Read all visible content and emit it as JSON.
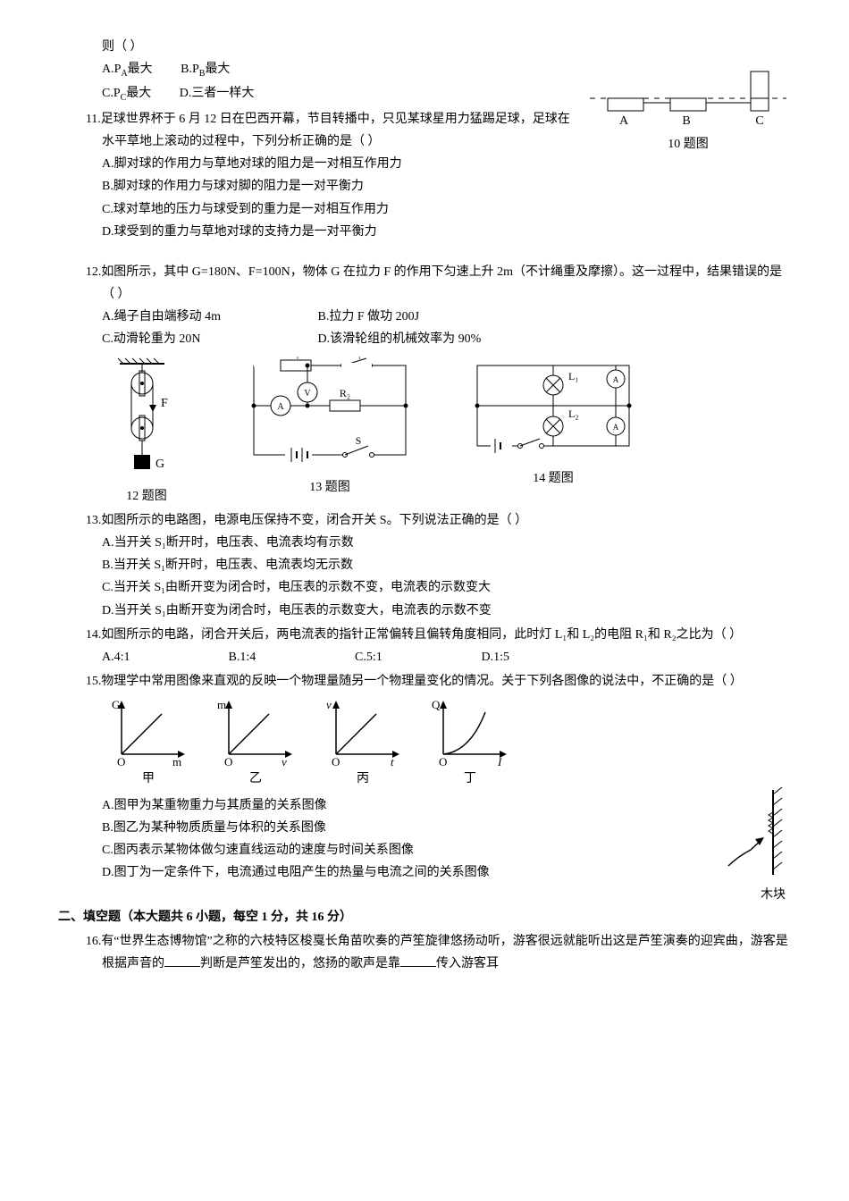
{
  "q10": {
    "pre_indent": "则（    ）",
    "opts": [
      "A.P<sub>A</sub>最大",
      "B.P<sub>B</sub>最大",
      "C.P<sub>C</sub>最大",
      "D.三者一样大"
    ],
    "fig_caption": "10 题图",
    "fig": {
      "labels": [
        "A",
        "B",
        "C"
      ],
      "colors": {
        "line": "#000",
        "dash": "#000"
      }
    }
  },
  "q11": {
    "stem": "11.足球世界杯于 6 月 12 日在巴西开幕，节目转播中，只见某球星用力猛踢足球，足球在水平草地上滚动的过程中，下列分析正确的是（    ）",
    "opts": [
      "A.脚对球的作用力与草地对球的阻力是一对相互作用力",
      "B.脚对球的作用力与球对脚的阻力是一对平衡力",
      "C.球对草地的压力与球受到的重力是一对相互作用力",
      "D.球受到的重力与草地对球的支持力是一对平衡力"
    ]
  },
  "q12": {
    "stem": "12.如图所示，其中 G=180N、F=100N，物体 G 在拉力 F 的作用下匀速上升 2m（不计绳重及摩擦）。这一过程中，结果错误的是（    ）",
    "opts_row1": [
      "A.绳子自由端移动 4m",
      "B.拉力 F 做功 200J"
    ],
    "opts_row2": [
      "C.动滑轮重为 20N",
      "D.该滑轮组的机械效率为 90%"
    ],
    "captions": [
      "12 题图",
      "13 题图",
      "14 题图"
    ],
    "labels": {
      "F": "F",
      "G": "G",
      "R1": "R₁",
      "R2": "R₂",
      "S1": "S₁",
      "S": "S",
      "L1": "L₁",
      "L2": "L₂"
    }
  },
  "q13": {
    "stem": "13.如图所示的电路图，电源电压保持不变，闭合开关 S。下列说法正确的是（    ）",
    "opts": [
      "A.当开关 S₁断开时，电压表、电流表均有示数",
      "B.当开关 S₁断开时，电压表、电流表均无示数",
      "C.当开关 S₁由断开变为闭合时，电压表的示数不变，电流表的示数变大",
      "D.当开关 S₁由断开变为闭合时，电压表的示数变大，电流表的示数不变"
    ]
  },
  "q14": {
    "stem": "14.如图所示的电路，闭合开关后，两电流表的指针正常偏转且偏转角度相同，此时灯 L₁和 L₂的电阻 R₁和 R₂之比为（    ）",
    "opts": [
      "A.4:1",
      "B.1:4",
      "C.5:1",
      "D.1:5"
    ]
  },
  "q15": {
    "stem": "15.物理学中常用图像来直观的反映一个物理量随另一个物理量变化的情况。关于下列各图像的说法中，不正确的是（    ）",
    "graphs": [
      {
        "yLabel": "G",
        "xLabel": "m",
        "caption": "甲",
        "shape": "line"
      },
      {
        "yLabel": "m",
        "xLabel": "v",
        "caption": "乙",
        "shape": "line"
      },
      {
        "yLabel": "v",
        "xLabel": "t",
        "caption": "丙",
        "shape": "line"
      },
      {
        "yLabel": "Q",
        "xLabel": "I",
        "caption": "丁",
        "shape": "curve"
      }
    ],
    "graph_style": {
      "axis_color": "#000",
      "axis_width": 1.5,
      "line_width": 1.5
    },
    "opts": [
      "A.图甲为某重物重力与其质量的关系图像",
      "B.图乙为某种物质质量与体积的关系图像",
      "C.图丙表示某物体做匀速直线运动的速度与时间关系图像",
      "D.图丁为一定条件下，电流通过电阻产生的热量与电流之间的关系图像"
    ],
    "wood_label": "木块"
  },
  "section2": {
    "title": "二、填空题（本大题共 6 小题，每空 1 分，共 16 分）"
  },
  "q16": {
    "stem_pre": "16.有“世界生态博物馆”之称的六枝特区梭戛长角苗吹奏的芦笙旋律悠扬动听，游客很远就能听出这是芦笙演奏的迎宾曲，游客是根据声音的",
    "stem_mid": "判断是芦笙发出的，悠扬的歌声是靠",
    "stem_post": "传入游客耳"
  }
}
